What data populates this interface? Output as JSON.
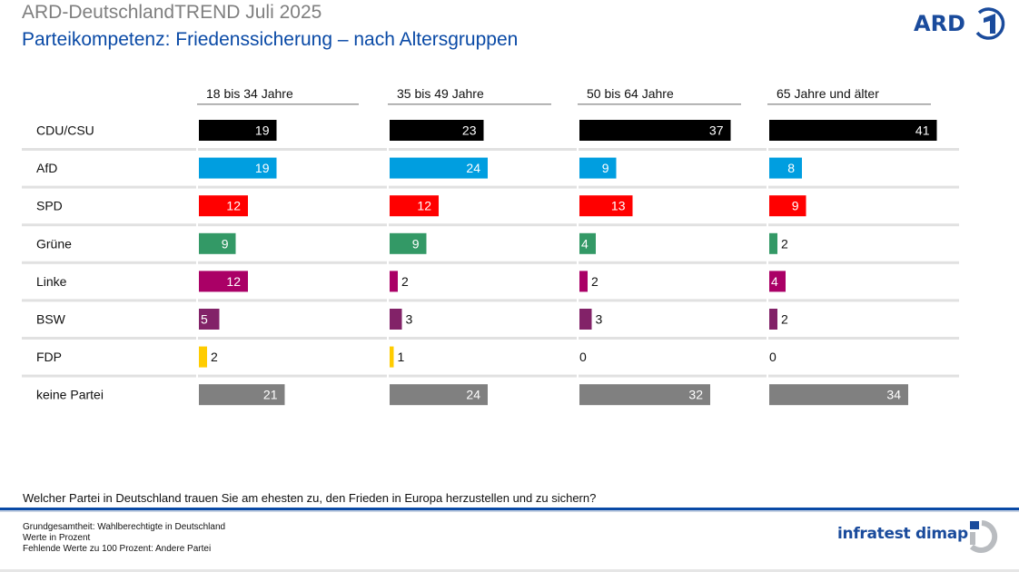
{
  "header": {
    "title": "ARD-DeutschlandTREND Juli 2025",
    "subtitle": "Parteikompetenz: Friedenssicherung – nach Altersgruppen",
    "logo_text": "ARD",
    "logo_icon": "ard-one-icon"
  },
  "chart_data": {
    "type": "bar",
    "orientation": "horizontal",
    "title": "Parteikompetenz: Friedenssicherung – nach Altersgruppen",
    "xlabel": "",
    "ylabel": "",
    "unit": "Prozent",
    "xlim": [
      0,
      45
    ],
    "grid": false,
    "legend": "none",
    "panels": [
      "18 bis 34 Jahre",
      "35 bis 49 Jahre",
      "50 bis 64 Jahre",
      "65 Jahre und älter"
    ],
    "categories": [
      "CDU/CSU",
      "AfD",
      "SPD",
      "Grüne",
      "Linke",
      "BSW",
      "FDP",
      "keine Partei"
    ],
    "colors": [
      "#000000",
      "#009ee0",
      "#ff0000",
      "#339966",
      "#aa0066",
      "#822268",
      "#ffcc00",
      "#808080"
    ],
    "series": [
      {
        "name": "18 bis 34 Jahre",
        "values": [
          19,
          19,
          12,
          9,
          12,
          5,
          2,
          21
        ]
      },
      {
        "name": "35 bis 49 Jahre",
        "values": [
          23,
          24,
          12,
          9,
          2,
          3,
          1,
          24
        ]
      },
      {
        "name": "50 bis 64 Jahre",
        "values": [
          37,
          9,
          13,
          4,
          2,
          3,
          0,
          32
        ]
      },
      {
        "name": "65 Jahre und älter",
        "values": [
          41,
          8,
          9,
          2,
          4,
          2,
          0,
          34
        ]
      }
    ]
  },
  "footer": {
    "question": "Welcher Partei in Deutschland trauen Sie am ehesten zu, den Frieden in Europa herzustellen und zu sichern?",
    "notes": [
      "Grundgesamtheit: Wahlberechtigte in Deutschland",
      "Werte in Prozent",
      "Fehlende Werte zu 100 Prozent: Andere Partei"
    ],
    "brand": "infratest dimap",
    "brand_icon": "infratest-dimap-icon"
  }
}
